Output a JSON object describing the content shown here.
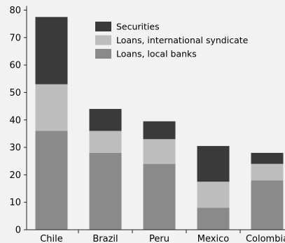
{
  "chart_data": {
    "type": "bar",
    "stacked": true,
    "title": "",
    "ylabel": "",
    "xlabel": "",
    "ylim": [
      0,
      80
    ],
    "yticks": [
      0,
      10,
      20,
      30,
      40,
      50,
      60,
      70,
      80
    ],
    "categories": [
      "Chile",
      "Brazil",
      "Peru",
      "Mexico",
      "Colombia"
    ],
    "series": [
      {
        "name": "Loans, local banks",
        "color": "#8a8a8a",
        "values": [
          36,
          28,
          24,
          8,
          18
        ]
      },
      {
        "name": "Loans, international syndicate",
        "color": "#bdbdbd",
        "values": [
          17,
          8,
          9,
          9.5,
          6
        ]
      },
      {
        "name": "Securities",
        "color": "#3a3a3a",
        "values": [
          24.5,
          8,
          6.5,
          13,
          4
        ]
      }
    ],
    "legend": {
      "position": "top-right",
      "order": [
        "Securities",
        "Loans, international syndicate",
        "Loans, local banks"
      ]
    },
    "grid": false
  }
}
